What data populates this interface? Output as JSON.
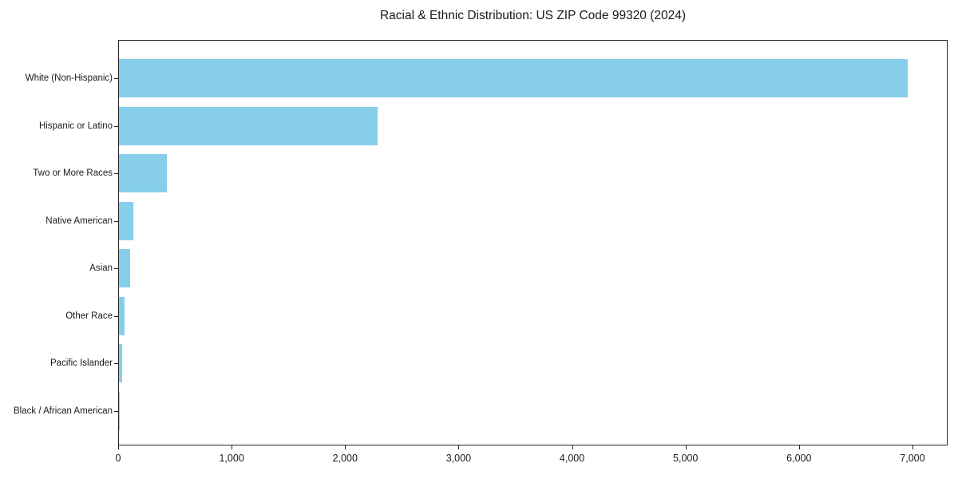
{
  "title": "Racial & Ethnic Distribution: US ZIP Code 99320 (2024)",
  "colors": {
    "bar": "#87CEEB",
    "spine": "#262626",
    "text": "#1a1a1a",
    "background": "#ffffff"
  },
  "chart_data": {
    "type": "bar",
    "orientation": "horizontal",
    "title": "Racial & Ethnic Distribution: US ZIP Code 99320 (2024)",
    "categories": [
      "White (Non-Hispanic)",
      "Hispanic or Latino",
      "Two or More Races",
      "Native American",
      "Asian",
      "Other Race",
      "Pacific Islander",
      "Black / African American"
    ],
    "values": [
      6950,
      2280,
      420,
      125,
      100,
      47,
      25,
      8
    ],
    "xlabel": "",
    "ylabel": "",
    "xlim": [
      0,
      7310
    ],
    "xticks": [
      0,
      1000,
      2000,
      3000,
      4000,
      5000,
      6000,
      7000
    ],
    "xtick_labels": [
      "0",
      "1,000",
      "2,000",
      "3,000",
      "4,000",
      "5,000",
      "6,000",
      "7,000"
    ],
    "bar_color": "#87CEEB",
    "grid": false,
    "legend": null
  }
}
